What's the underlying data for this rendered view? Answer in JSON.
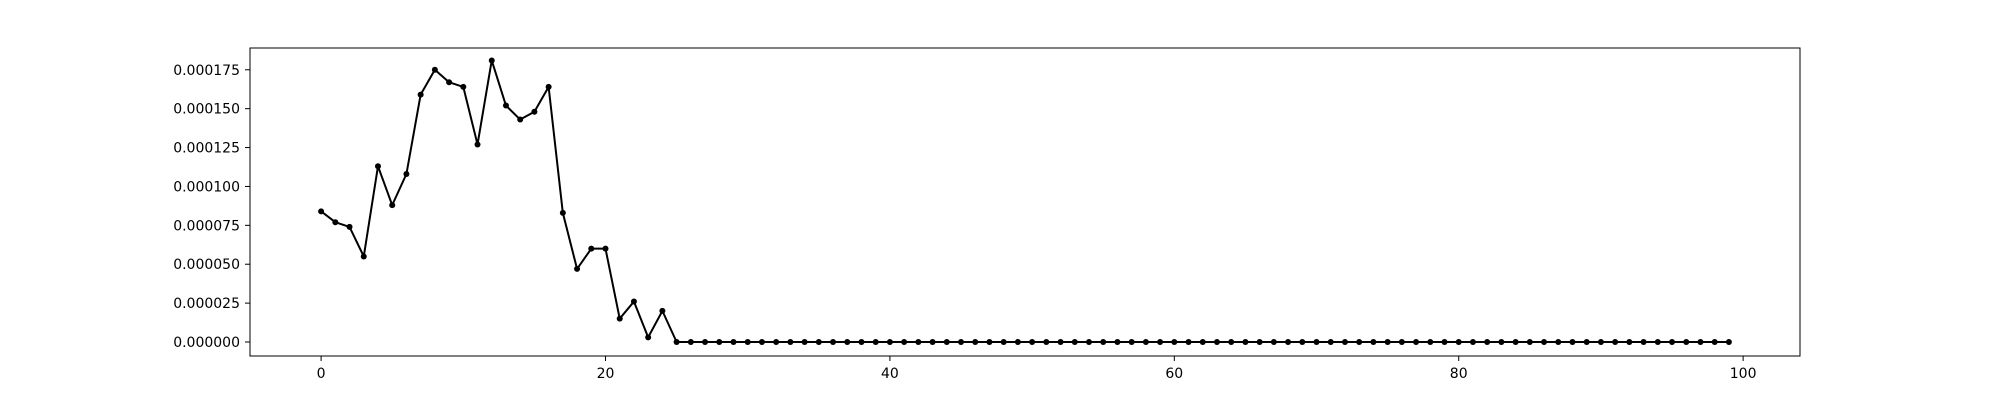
{
  "chart_data": {
    "type": "line",
    "title": "",
    "xlabel": "",
    "ylabel": "",
    "xlim": [
      -5,
      104
    ],
    "ylim": [
      -9e-06,
      0.000189
    ],
    "x_ticks": [
      0,
      20,
      40,
      60,
      80,
      100
    ],
    "x_tick_labels": [
      "0",
      "20",
      "40",
      "60",
      "80",
      "100"
    ],
    "y_ticks": [
      0,
      2.5e-05,
      5e-05,
      7.5e-05,
      0.0001,
      0.000125,
      0.00015,
      0.000175
    ],
    "y_tick_labels": [
      "0.000000",
      "0.000025",
      "0.000050",
      "0.000075",
      "0.000100",
      "0.000125",
      "0.000150",
      "0.000175"
    ],
    "grid": false,
    "line_color": "#000000",
    "marker": "circle",
    "series": [
      {
        "x": [
          0,
          1,
          2,
          3,
          4,
          5,
          6,
          7,
          8,
          9,
          10,
          11,
          12,
          13,
          14,
          15,
          16,
          17,
          18,
          19,
          20,
          21,
          22,
          23,
          24,
          25,
          26,
          27,
          28,
          29,
          30,
          31,
          32,
          33,
          34,
          35,
          36,
          37,
          38,
          39,
          40,
          41,
          42,
          43,
          44,
          45,
          46,
          47,
          48,
          49,
          50,
          51,
          52,
          53,
          54,
          55,
          56,
          57,
          58,
          59,
          60,
          61,
          62,
          63,
          64,
          65,
          66,
          67,
          68,
          69,
          70,
          71,
          72,
          73,
          74,
          75,
          76,
          77,
          78,
          79,
          80,
          81,
          82,
          83,
          84,
          85,
          86,
          87,
          88,
          89,
          90,
          91,
          92,
          93,
          94,
          95,
          96,
          97,
          98,
          99
        ],
        "values": [
          8.4e-05,
          7.7e-05,
          7.4e-05,
          5.5e-05,
          0.000113,
          8.8e-05,
          0.000108,
          0.000159,
          0.000175,
          0.000167,
          0.000164,
          0.000127,
          0.000181,
          0.000152,
          0.000143,
          0.000148,
          0.000164,
          8.3e-05,
          4.7e-05,
          6e-05,
          6e-05,
          1.5e-05,
          2.6e-05,
          3e-06,
          2e-05,
          0,
          0,
          0,
          0,
          0,
          0,
          0,
          0,
          0,
          0,
          0,
          0,
          0,
          0,
          0,
          0,
          0,
          0,
          0,
          0,
          0,
          0,
          0,
          0,
          0,
          0,
          0,
          0,
          0,
          0,
          0,
          0,
          0,
          0,
          0,
          0,
          0,
          0,
          0,
          0,
          0,
          0,
          0,
          0,
          0,
          0,
          0,
          0,
          0,
          0,
          0,
          0,
          0,
          0,
          0,
          0,
          0,
          0,
          0,
          0,
          0,
          0,
          0,
          0,
          0,
          0,
          0,
          0,
          0,
          0,
          0,
          0,
          0,
          0,
          0
        ]
      }
    ]
  }
}
